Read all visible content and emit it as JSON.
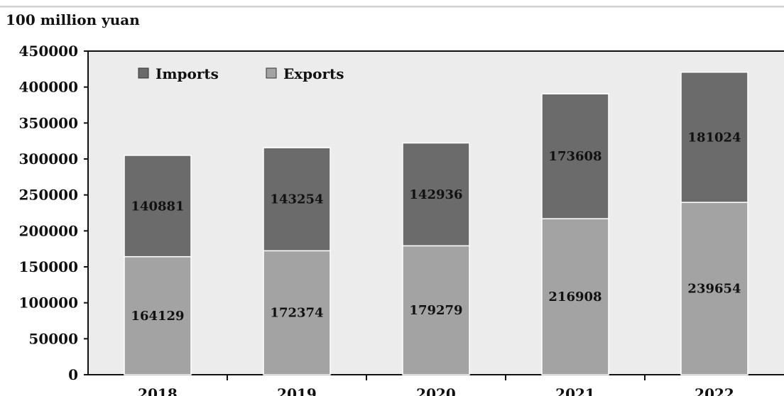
{
  "chart_data": {
    "type": "bar",
    "stacked": true,
    "ylabel": "100 million yuan",
    "categories": [
      "2018",
      "2019",
      "2020",
      "2021",
      "2022"
    ],
    "series": [
      {
        "name": "Exports",
        "values": [
          164129,
          172374,
          179279,
          216908,
          239654
        ]
      },
      {
        "name": "Imports",
        "values": [
          140881,
          143254,
          142936,
          173608,
          181024
        ]
      }
    ],
    "ylim": [
      0,
      450000
    ],
    "yticks": [
      0,
      50000,
      100000,
      150000,
      200000,
      250000,
      300000,
      350000,
      400000,
      450000
    ],
    "legend_position": "top-left",
    "grid": false
  },
  "colors": {
    "Exports": "#a3a3a3",
    "Imports": "#6b6b6b",
    "background": "#ececec",
    "axis": "#111111"
  }
}
